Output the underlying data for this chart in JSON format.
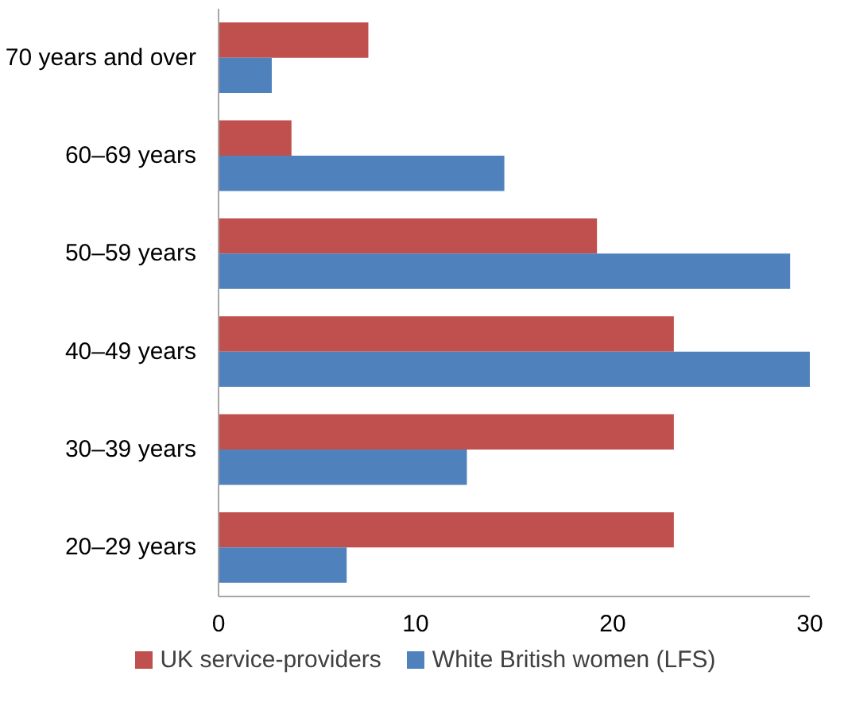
{
  "chart_data": {
    "type": "bar",
    "orientation": "horizontal",
    "categories": [
      "70 years and over",
      "60–69 years",
      "50–59 years",
      "40–49 years",
      "30–39 years",
      "20–29 years"
    ],
    "series": [
      {
        "name": "UK service-providers",
        "color": "#c0504d",
        "values": [
          7.6,
          3.7,
          19.2,
          23.1,
          23.1,
          23.1
        ]
      },
      {
        "name": "White British women (LFS)",
        "color": "#4f81bd",
        "values": [
          2.7,
          14.5,
          29.0,
          30,
          12.6,
          6.5
        ]
      }
    ],
    "xlim": [
      0,
      30
    ],
    "xticks": [
      0,
      10,
      20,
      30
    ],
    "grid": false,
    "legend": "bottom"
  }
}
